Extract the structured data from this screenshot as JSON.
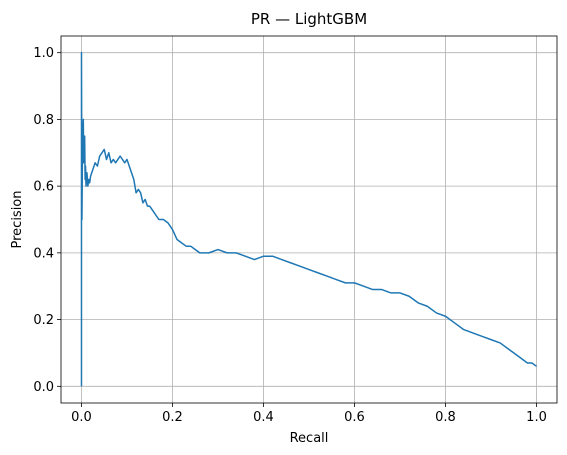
{
  "chart_data": {
    "type": "line",
    "title": "PR — LightGBM",
    "xlabel": "Recall",
    "ylabel": "Precision",
    "xlim": [
      -0.045,
      1.045
    ],
    "ylim": [
      -0.05,
      1.05
    ],
    "grid": true,
    "xticks": [
      0.0,
      0.2,
      0.4,
      0.6,
      0.8,
      1.0
    ],
    "yticks": [
      0.0,
      0.2,
      0.4,
      0.6,
      0.8,
      1.0
    ],
    "xtick_labels": [
      "0.0",
      "0.2",
      "0.4",
      "0.6",
      "0.8",
      "1.0"
    ],
    "ytick_labels": [
      "0.0",
      "0.2",
      "0.4",
      "0.6",
      "0.8",
      "1.0"
    ],
    "series": [
      {
        "color": "#1f77b4",
        "x": [
          0.0,
          0.0,
          0.001,
          0.002,
          0.003,
          0.004,
          0.005,
          0.006,
          0.007,
          0.008,
          0.009,
          0.01,
          0.012,
          0.014,
          0.016,
          0.018,
          0.02,
          0.025,
          0.03,
          0.035,
          0.04,
          0.045,
          0.05,
          0.055,
          0.06,
          0.065,
          0.07,
          0.075,
          0.08,
          0.085,
          0.09,
          0.095,
          0.1,
          0.105,
          0.11,
          0.115,
          0.12,
          0.125,
          0.13,
          0.135,
          0.14,
          0.145,
          0.15,
          0.16,
          0.17,
          0.18,
          0.19,
          0.2,
          0.21,
          0.22,
          0.23,
          0.24,
          0.25,
          0.26,
          0.27,
          0.28,
          0.3,
          0.32,
          0.34,
          0.36,
          0.38,
          0.4,
          0.42,
          0.44,
          0.46,
          0.48,
          0.5,
          0.52,
          0.54,
          0.56,
          0.58,
          0.6,
          0.62,
          0.64,
          0.66,
          0.68,
          0.7,
          0.72,
          0.74,
          0.76,
          0.78,
          0.8,
          0.82,
          0.84,
          0.86,
          0.88,
          0.9,
          0.92,
          0.94,
          0.96,
          0.97,
          0.98,
          0.99,
          1.0
        ],
        "y": [
          0.0,
          1.0,
          0.5,
          0.67,
          0.75,
          0.8,
          0.67,
          0.71,
          0.75,
          0.62,
          0.66,
          0.6,
          0.64,
          0.6,
          0.62,
          0.61,
          0.63,
          0.65,
          0.67,
          0.66,
          0.69,
          0.7,
          0.71,
          0.68,
          0.7,
          0.67,
          0.68,
          0.67,
          0.68,
          0.69,
          0.68,
          0.67,
          0.68,
          0.66,
          0.64,
          0.62,
          0.58,
          0.59,
          0.58,
          0.55,
          0.56,
          0.54,
          0.54,
          0.52,
          0.5,
          0.5,
          0.49,
          0.47,
          0.44,
          0.43,
          0.42,
          0.42,
          0.41,
          0.4,
          0.4,
          0.4,
          0.41,
          0.4,
          0.4,
          0.39,
          0.38,
          0.39,
          0.39,
          0.38,
          0.37,
          0.36,
          0.35,
          0.34,
          0.33,
          0.32,
          0.31,
          0.31,
          0.3,
          0.29,
          0.29,
          0.28,
          0.28,
          0.27,
          0.25,
          0.24,
          0.22,
          0.21,
          0.19,
          0.17,
          0.16,
          0.15,
          0.14,
          0.13,
          0.11,
          0.09,
          0.08,
          0.07,
          0.07,
          0.06
        ]
      }
    ]
  }
}
